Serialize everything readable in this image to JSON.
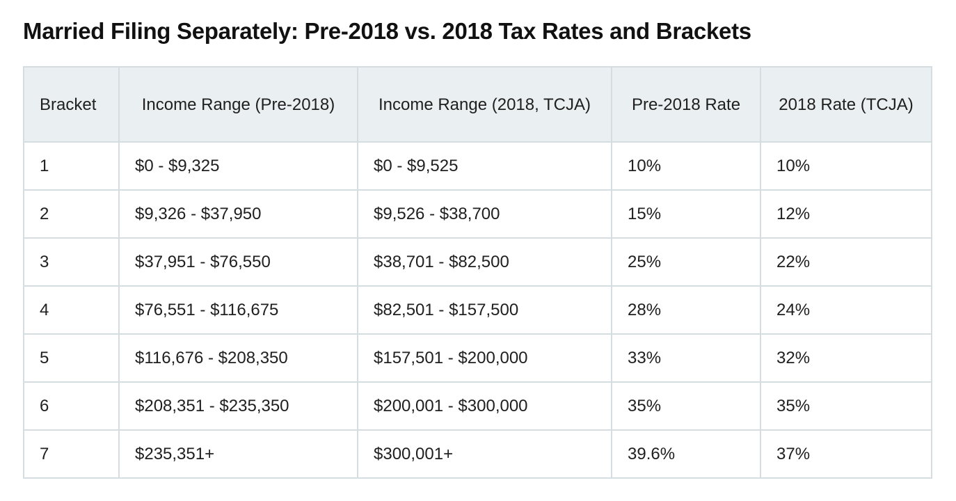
{
  "title": "Married Filing Separately: Pre-2018 vs. 2018 Tax Rates and Brackets",
  "table": {
    "headers": [
      "Bracket",
      "Income Range (Pre-2018)",
      "Income Range (2018, TCJA)",
      "Pre-2018 Rate",
      "2018 Rate (TCJA)"
    ],
    "rows": [
      [
        "1",
        "$0 - $9,325",
        "$0 - $9,525",
        "10%",
        "10%"
      ],
      [
        "2",
        "$9,326 - $37,950",
        "$9,526 - $38,700",
        "15%",
        "12%"
      ],
      [
        "3",
        "$37,951 - $76,550",
        "$38,701 - $82,500",
        "25%",
        "22%"
      ],
      [
        "4",
        "$76,551 - $116,675",
        "$82,501 - $157,500",
        "28%",
        "24%"
      ],
      [
        "5",
        "$116,676 - $208,350",
        "$157,501 - $200,000",
        "33%",
        "32%"
      ],
      [
        "6",
        "$208,351 - $235,350",
        "$200,001 - $300,000",
        "35%",
        "35%"
      ],
      [
        "7",
        "$235,351+",
        "$300,001+",
        "39.6%",
        "37%"
      ]
    ]
  },
  "colors": {
    "header_bg": "#eaf0f1",
    "border": "#d5dde1",
    "text": "#202020",
    "title": "#111111"
  }
}
